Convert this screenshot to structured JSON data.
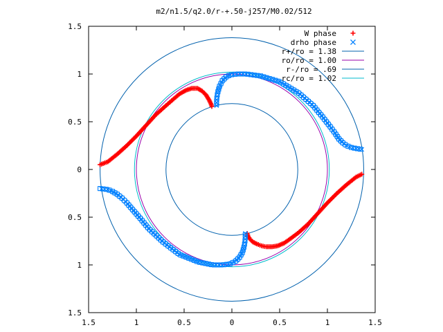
{
  "chart_data": {
    "type": "scatter",
    "title": "m2/n1.5/q2.0/r-+.50-j257/M0.02/512",
    "xlim": [
      -1.5,
      1.5
    ],
    "ylim": [
      -1.5,
      1.5
    ],
    "x_tick_labels": [
      "1.5",
      "1",
      "0.5",
      "0",
      "0.5",
      "1",
      "1.5"
    ],
    "y_tick_labels": [
      "1.5",
      "1",
      "0.5",
      "0",
      "0.5",
      "1",
      "1.5"
    ],
    "x_tick_values": [
      -1.5,
      -1,
      -0.5,
      0,
      0.5,
      1,
      1.5
    ],
    "y_tick_values": [
      1.5,
      1,
      0.5,
      0,
      -0.5,
      -1,
      -1.5
    ],
    "grid": false,
    "legend_position": "top-right",
    "series": [
      {
        "name": "W phase",
        "kind": "points",
        "marker": "plus",
        "color": "#ff0000",
        "branches": [
          {
            "x": [
              -1.38,
              -1.3,
              -1.2,
              -1.1,
              -1.0,
              -0.9,
              -0.8,
              -0.7,
              -0.62,
              -0.55,
              -0.48,
              -0.42,
              -0.36,
              -0.31,
              -0.27,
              -0.24,
              -0.22,
              -0.21
            ],
            "y": [
              0.05,
              0.08,
              0.16,
              0.25,
              0.35,
              0.46,
              0.57,
              0.66,
              0.73,
              0.79,
              0.83,
              0.85,
              0.85,
              0.82,
              0.78,
              0.73,
              0.69,
              0.66
            ]
          },
          {
            "x": [
              1.36,
              1.3,
              1.2,
              1.1,
              1.0,
              0.9,
              0.8,
              0.7,
              0.62,
              0.55,
              0.48,
              0.42,
              0.36,
              0.31,
              0.26,
              0.22,
              0.19,
              0.17,
              0.16
            ],
            "y": [
              -0.05,
              -0.08,
              -0.16,
              -0.25,
              -0.35,
              -0.46,
              -0.57,
              -0.66,
              -0.72,
              -0.77,
              -0.8,
              -0.81,
              -0.81,
              -0.8,
              -0.78,
              -0.76,
              -0.73,
              -0.7,
              -0.67
            ]
          }
        ]
      },
      {
        "name": "drho phase",
        "kind": "points",
        "marker": "cross-square",
        "color": "#0080ff",
        "branches": [
          {
            "x": [
              -0.16,
              -0.16,
              -0.15,
              -0.13,
              -0.1,
              -0.06,
              -0.02,
              0.05,
              0.15,
              0.3,
              0.5,
              0.7,
              0.85,
              0.95,
              1.02,
              1.08,
              1.12,
              1.16,
              1.2,
              1.25,
              1.3,
              1.36
            ],
            "y": [
              0.67,
              0.73,
              0.8,
              0.87,
              0.93,
              0.97,
              0.99,
              1.0,
              1.0,
              0.98,
              0.92,
              0.8,
              0.67,
              0.55,
              0.46,
              0.38,
              0.32,
              0.28,
              0.25,
              0.23,
              0.22,
              0.21
            ]
          },
          {
            "x": [
              0.14,
              0.14,
              0.13,
              0.11,
              0.08,
              0.04,
              -0.02,
              -0.1,
              -0.2,
              -0.35,
              -0.55,
              -0.72,
              -0.87,
              -0.97,
              -1.04,
              -1.1,
              -1.15,
              -1.2,
              -1.25,
              -1.3,
              -1.38
            ],
            "y": [
              -0.67,
              -0.73,
              -0.8,
              -0.87,
              -0.92,
              -0.96,
              -0.99,
              -1.0,
              -1.0,
              -0.97,
              -0.89,
              -0.76,
              -0.62,
              -0.5,
              -0.42,
              -0.35,
              -0.3,
              -0.26,
              -0.23,
              -0.21,
              -0.2
            ]
          }
        ]
      },
      {
        "name": "r+/ro = 1.38",
        "kind": "circle",
        "radius": 1.38,
        "color": "#0060ad"
      },
      {
        "name": "ro/ro = 1.00",
        "kind": "circle",
        "radius": 1.0,
        "color": "#9900aa"
      },
      {
        "name": "r-/ro = .69",
        "kind": "circle",
        "radius": 0.69,
        "color": "#0060ad"
      },
      {
        "name": "rc/ro = 1.02",
        "kind": "circle",
        "radius": 1.02,
        "color": "#00bbcc"
      }
    ]
  }
}
